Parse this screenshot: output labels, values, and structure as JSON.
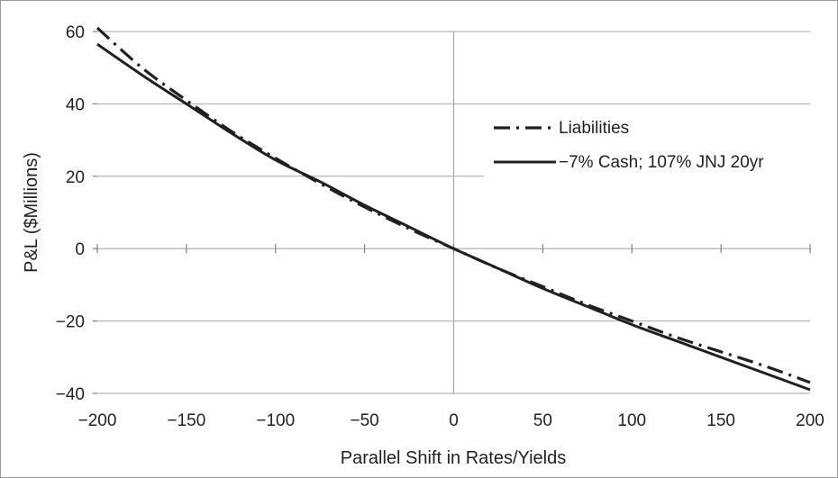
{
  "chart_data": {
    "type": "line",
    "title": "",
    "xlabel": "Parallel Shift in Rates/Yields",
    "ylabel": "P&L ($Millions)",
    "xlim": [
      -200,
      200
    ],
    "ylim": [
      -40,
      60
    ],
    "x_ticks": [
      -200,
      -150,
      -100,
      -50,
      0,
      50,
      100,
      150,
      200
    ],
    "x_tick_labels": [
      "−200",
      "−150",
      "−100",
      "−50",
      "0",
      "50",
      "100",
      "150",
      "200"
    ],
    "y_ticks": [
      60,
      40,
      20,
      0,
      -20,
      -40
    ],
    "y_tick_labels": [
      "60",
      "40",
      "20",
      "0",
      "−20",
      "−40"
    ],
    "grid": true,
    "legend_position": "right",
    "x": [
      -200,
      -175,
      -150,
      -125,
      -100,
      -75,
      -50,
      -25,
      0,
      25,
      50,
      75,
      100,
      125,
      150,
      175,
      200
    ],
    "series": [
      {
        "name": "Liabilities",
        "style": "dash-dot",
        "color": "#231f20",
        "values": [
          61,
          50,
          41,
          32.5,
          25,
          18,
          11.5,
          5.5,
          0,
          -5.5,
          -10.5,
          -15.5,
          -20,
          -24.5,
          -28.5,
          -32.5,
          -37
        ]
      },
      {
        "name": "−7% Cash; 107% JNJ 20yr",
        "style": "solid",
        "color": "#231f20",
        "values": [
          56.5,
          48,
          40,
          32,
          24.5,
          18.5,
          12,
          6,
          0,
          -5.5,
          -11,
          -16,
          -21,
          -25.5,
          -30,
          -34.5,
          -39
        ]
      }
    ]
  }
}
